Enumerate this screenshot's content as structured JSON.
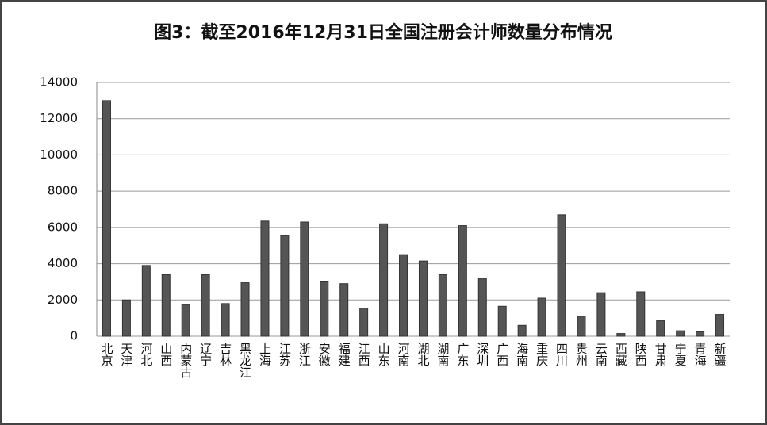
{
  "chart_data": {
    "type": "bar",
    "title": "图3：截至2016年12月31日全国注册会计师数量分布情况",
    "categories": [
      "北京",
      "天津",
      "河北",
      "山西",
      "内蒙古",
      "辽宁",
      "吉林",
      "黑龙江",
      "上海",
      "江苏",
      "浙江",
      "安徽",
      "福建",
      "江西",
      "山东",
      "河南",
      "湖北",
      "湖南",
      "广东",
      "深圳",
      "广西",
      "海南",
      "重庆",
      "四川",
      "贵州",
      "云南",
      "西藏",
      "陕西",
      "甘肃",
      "宁夏",
      "青海",
      "新疆"
    ],
    "values": [
      13000,
      2000,
      3900,
      3400,
      1750,
      3400,
      1800,
      2950,
      6350,
      5550,
      6300,
      3000,
      2900,
      1550,
      6200,
      4500,
      4150,
      3400,
      6100,
      3200,
      1650,
      600,
      2100,
      6700,
      1100,
      2400,
      150,
      2450,
      850,
      300,
      250,
      1200
    ],
    "color": "#555555",
    "ylim": [
      0,
      14000
    ],
    "yticks": [
      0,
      2000,
      4000,
      6000,
      8000,
      10000,
      12000,
      14000
    ],
    "grid": true
  }
}
